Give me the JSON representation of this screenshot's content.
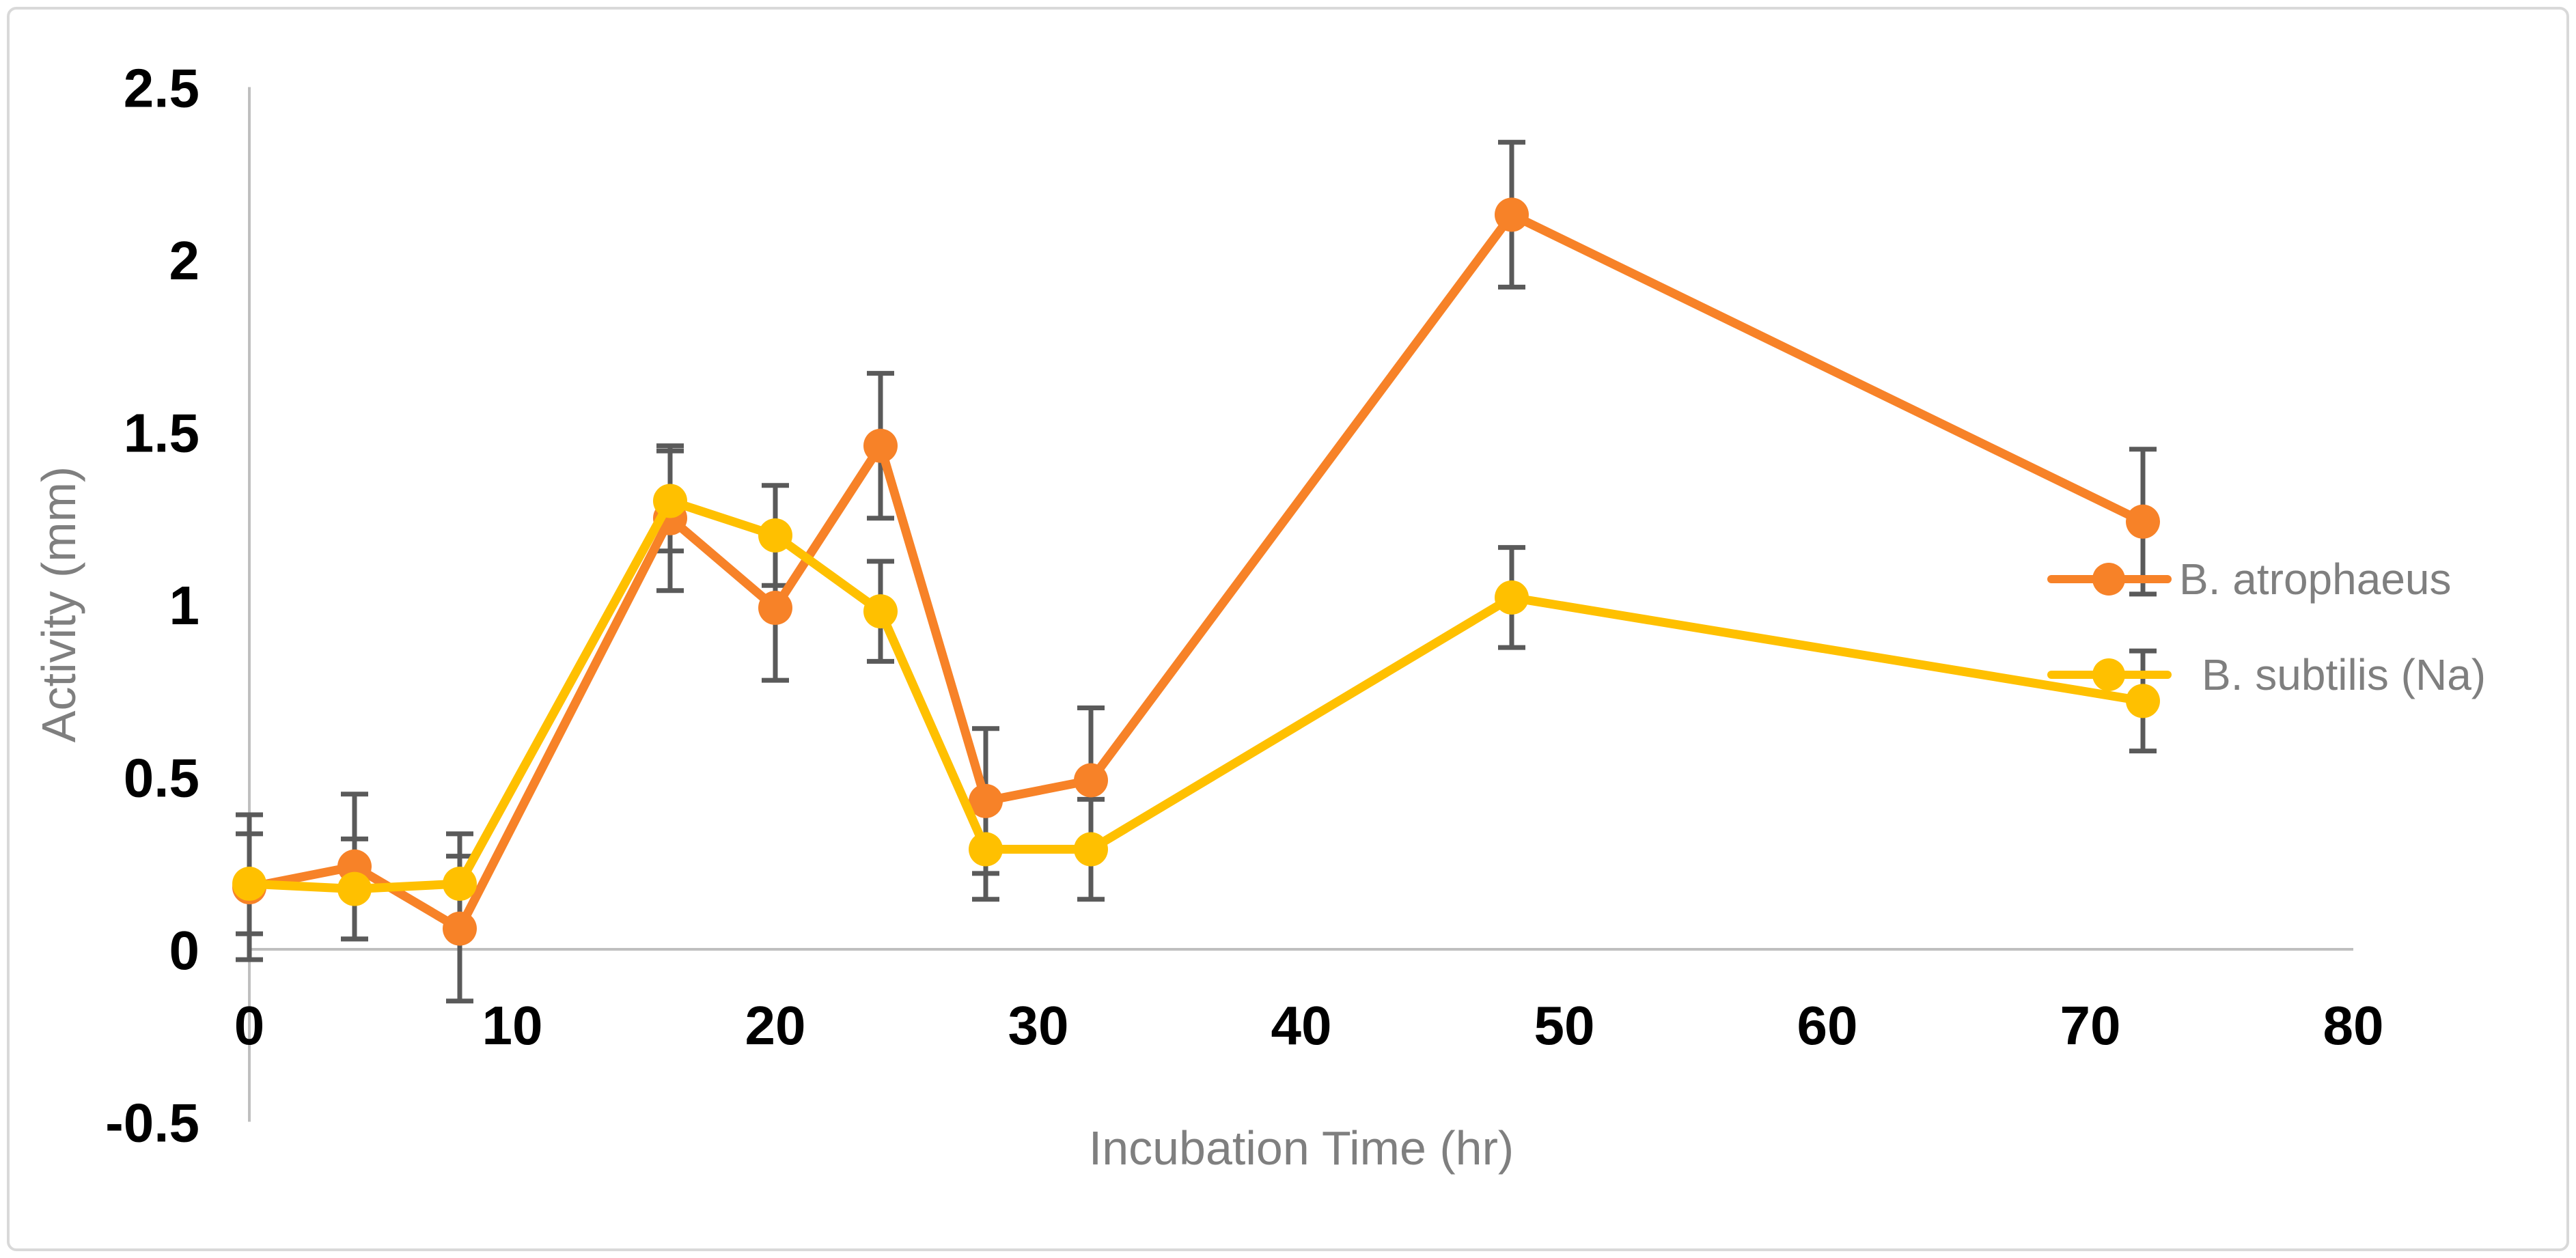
{
  "chart_data": {
    "type": "line",
    "title": "",
    "xlabel": "Incubation Time (hr)",
    "ylabel": "Activity (mm)",
    "x": [
      0,
      4,
      8,
      16,
      20,
      24,
      28,
      32,
      48,
      72
    ],
    "series": [
      {
        "name": "B. atrophaeus",
        "color": "#F78228",
        "values": [
          0.18,
          0.24,
          0.06,
          1.25,
          0.99,
          1.46,
          0.43,
          0.49,
          2.13,
          1.24
        ],
        "errors": [
          0.21,
          0.21,
          0.21,
          0.21,
          0.21,
          0.21,
          0.21,
          0.21,
          0.21,
          0.21
        ]
      },
      {
        "name": "B. subtilis (Na)",
        "color": "#FFC000",
        "values": [
          0.19,
          0.175,
          0.19,
          1.3,
          1.2,
          0.98,
          0.29,
          0.29,
          1.02,
          0.72
        ],
        "errors": [
          0.145,
          0.145,
          0.145,
          0.145,
          0.145,
          0.145,
          0.145,
          0.145,
          0.145,
          0.145
        ]
      }
    ],
    "x_ticks": [
      0,
      10,
      20,
      30,
      40,
      50,
      60,
      70,
      80
    ],
    "y_ticks": [
      2.5,
      2,
      1.5,
      1,
      0.5,
      0,
      -0.5
    ],
    "xlim": [
      0,
      80
    ],
    "ylim": [
      -0.5,
      2.5
    ],
    "legend_position": "right",
    "grid": false,
    "error_bar_color": "#5A5A5A",
    "axis_line_color": "#BFBFBF",
    "frame_color": "#D9D9D9",
    "text_gray": "#7F7F7F",
    "tick_text_color": "#000000"
  }
}
